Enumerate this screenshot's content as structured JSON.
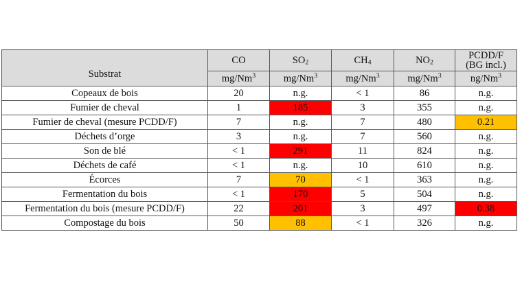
{
  "table": {
    "substrat_label": "Substrat",
    "columns": [
      {
        "label": "CO",
        "base": "CO",
        "subscript": "",
        "unit": "mg/Nm",
        "unit_sup": "3"
      },
      {
        "label": "SO2",
        "base": "SO",
        "subscript": "2",
        "unit": "mg/Nm",
        "unit_sup": "3"
      },
      {
        "label": "CH4",
        "base": "CH",
        "subscript": "4",
        "unit": "mg/Nm",
        "unit_sup": "3"
      },
      {
        "label": "NO2",
        "base": "NO",
        "subscript": "2",
        "unit": "mg/Nm",
        "unit_sup": "3"
      },
      {
        "label": "PCDD/F (BG incl.)",
        "line1": "PCDD/F",
        "line2": "(BG incl.)",
        "unit": "ng/Nm",
        "unit_sup": "3"
      }
    ],
    "rows": [
      {
        "substrat": "Copeaux de bois",
        "co": "20",
        "so2": "n.g.",
        "ch4": "< 1",
        "no2": "86",
        "pcdd": "n.g."
      },
      {
        "substrat": "Fumier de cheval",
        "co": "1",
        "so2": "185",
        "ch4": "3",
        "no2": "355",
        "pcdd": "n.g."
      },
      {
        "substrat": "Fumier de cheval (mesure PCDD/F)",
        "co": "7",
        "so2": "n.g.",
        "ch4": "7",
        "no2": "480",
        "pcdd": "0.21"
      },
      {
        "substrat": "Déchets d’orge",
        "co": "3",
        "so2": "n.g.",
        "ch4": "7",
        "no2": "560",
        "pcdd": "n.g."
      },
      {
        "substrat": "Son de blé",
        "co": "< 1",
        "so2": "291",
        "ch4": "11",
        "no2": "824",
        "pcdd": "n.g."
      },
      {
        "substrat": "Déchets de café",
        "co": "< 1",
        "so2": "n.g.",
        "ch4": "10",
        "no2": "610",
        "pcdd": "n.g."
      },
      {
        "substrat": "Écorces",
        "co": "7",
        "so2": "70",
        "ch4": "< 1",
        "no2": "363",
        "pcdd": "n.g."
      },
      {
        "substrat": "Fermentation du bois",
        "co": "< 1",
        "so2": "170",
        "ch4": "5",
        "no2": "504",
        "pcdd": "n.g."
      },
      {
        "substrat": "Fermentation du bois (mesure PCDD/F)",
        "co": "22",
        "so2": "201",
        "ch4": "3",
        "no2": "497",
        "pcdd": "0.38"
      },
      {
        "substrat": "Compostage du bois",
        "co": "50",
        "so2": "88",
        "ch4": "< 1",
        "no2": "326",
        "pcdd": "n.g."
      }
    ],
    "highlights": [
      {
        "row": 1,
        "col": "so2",
        "level": "red"
      },
      {
        "row": 2,
        "col": "pcdd",
        "level": "orange"
      },
      {
        "row": 4,
        "col": "so2",
        "level": "red"
      },
      {
        "row": 6,
        "col": "so2",
        "level": "orange"
      },
      {
        "row": 7,
        "col": "so2",
        "level": "red"
      },
      {
        "row": 8,
        "col": "so2",
        "level": "red"
      },
      {
        "row": 8,
        "col": "pcdd",
        "level": "red"
      },
      {
        "row": 9,
        "col": "so2",
        "level": "orange"
      }
    ],
    "colors": {
      "red": "#ff0000",
      "orange": "#ffc000",
      "header_bg": "#dcdcdc",
      "border": "#555555"
    }
  }
}
